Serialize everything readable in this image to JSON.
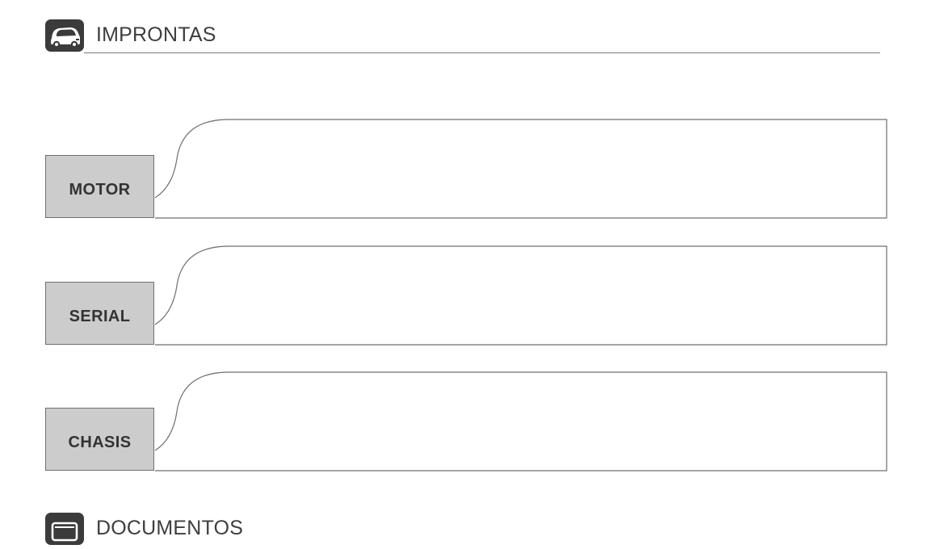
{
  "sections": {
    "impressions": {
      "title": "IMPRONTAS",
      "icon": "car-icon"
    },
    "documents": {
      "title": "DOCUMENTOS",
      "icon": "document-window-icon"
    }
  },
  "fields": [
    {
      "label": "MOTOR",
      "value": ""
    },
    {
      "label": "SERIAL",
      "value": ""
    },
    {
      "label": "CHASIS",
      "value": ""
    }
  ],
  "colors": {
    "icon_background": "#3b3b3b",
    "label_background": "#cccccc",
    "line": "#6f6f6f",
    "text": "#3e3e3e"
  }
}
